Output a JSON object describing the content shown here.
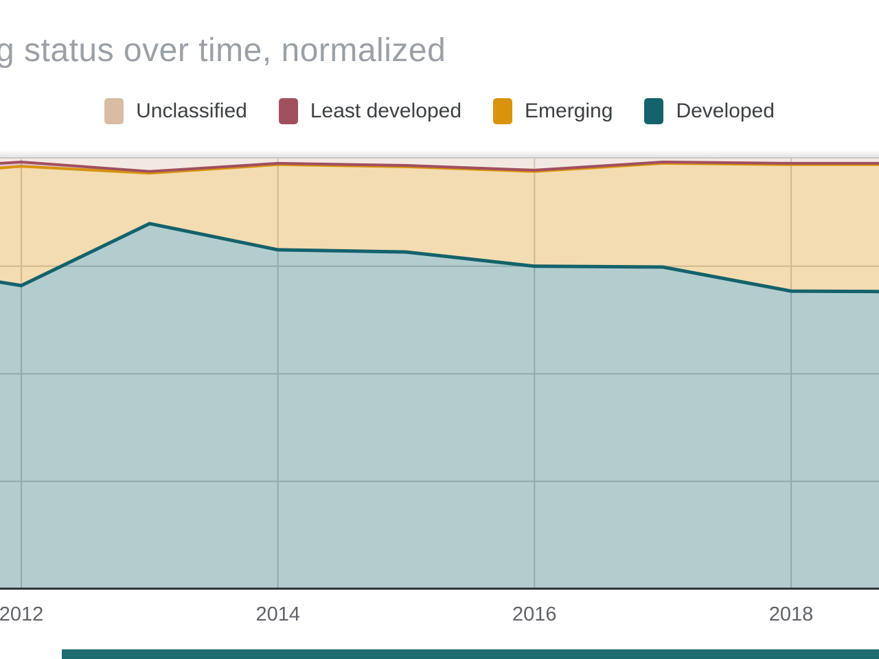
{
  "title": "g status over time, normalized",
  "legend": [
    {
      "label": "Unclassified",
      "color": "#d9bca4"
    },
    {
      "label": "Least developed",
      "color": "#a04f5e"
    },
    {
      "label": "Emerging",
      "color": "#d9930d"
    },
    {
      "label": "Developed",
      "color": "#14626b"
    }
  ],
  "chart_data": {
    "type": "area",
    "stacked": true,
    "normalized": true,
    "title": "g status over time, normalized",
    "xlabel": "",
    "ylabel": "",
    "ylim": [
      0,
      100
    ],
    "x_domain_shown": [
      2011.83,
      2018.69
    ],
    "x": [
      2011.83,
      2012,
      2013,
      2014,
      2015,
      2016,
      2017,
      2018,
      2018.69
    ],
    "x_ticks": [
      2012,
      2014,
      2016,
      2018
    ],
    "x_tick_labels": [
      "2012",
      "2014",
      "2016",
      "2018"
    ],
    "y_gridline_percents": [
      25,
      50,
      75,
      100
    ],
    "grid": "on",
    "legend_position": "top",
    "series": [
      {
        "name": "Developed",
        "color": "#14626b",
        "line_width": 5,
        "values": [
          71.3,
          70.5,
          84.9,
          78.8,
          78.3,
          75.0,
          74.8,
          69.2,
          69.1
        ]
      },
      {
        "name": "Emerging",
        "color": "#d9930d",
        "line_width": 4,
        "values": [
          26.5,
          27.7,
          11.7,
          19.8,
          19.8,
          22.0,
          24.1,
          29.4,
          29.5
        ]
      },
      {
        "name": "Least developed",
        "color": "#a04f5e",
        "line_width": 4,
        "values": [
          1.1,
          1.0,
          0.4,
          0.3,
          0.3,
          0.3,
          0.3,
          0.3,
          0.3
        ]
      },
      {
        "name": "Unclassified",
        "color": "#d9bca4",
        "line_width": 0,
        "values": [
          1.1,
          0.8,
          3.0,
          1.1,
          1.6,
          2.7,
          0.8,
          1.1,
          1.1
        ]
      }
    ]
  },
  "colors": {
    "background": "#ffffff",
    "grid": "#cccccc",
    "plot_top_border": "#c9c9c9",
    "axis_line": "#2e3438",
    "tick_label": "#5f6368",
    "title_text": "#9aa0a6",
    "legend_text": "#3c4043",
    "bottom_bar": "#1d6b6e"
  }
}
